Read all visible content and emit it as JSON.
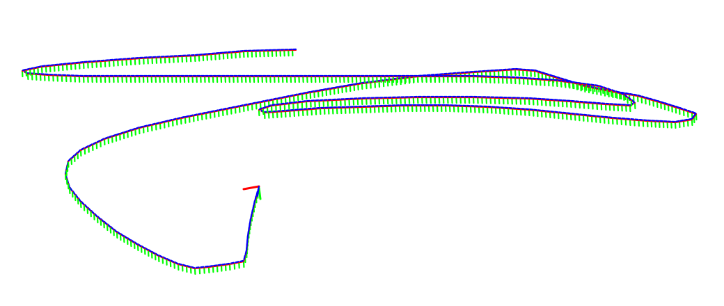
{
  "colors": {
    "background": "#ffffff",
    "axis_x": "#ff0000",
    "axis_y": "#00ff00",
    "axis_z": "#0000ff"
  },
  "legend": "none",
  "title": ""
}
